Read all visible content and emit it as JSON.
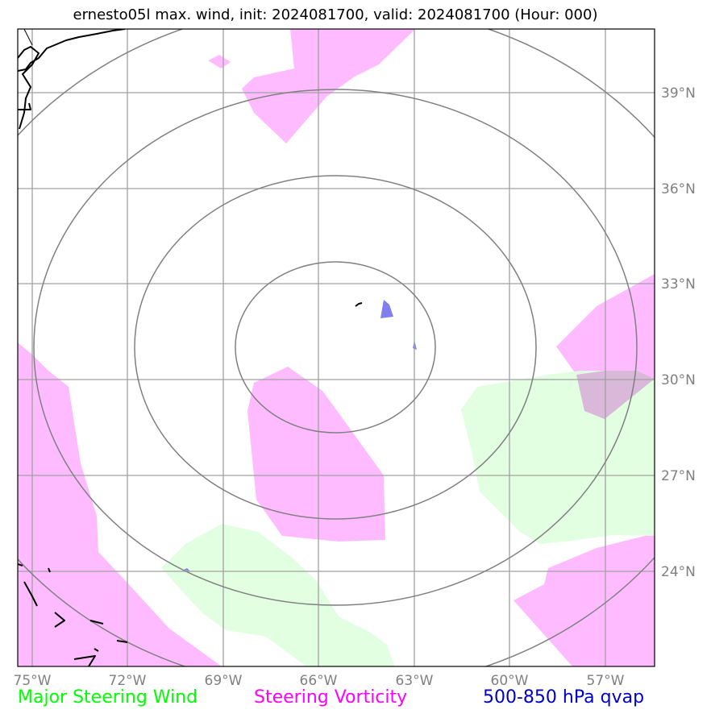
{
  "title": "ernesto05l max. wind, init: 2024081700, valid: 2024081700 (Hour: 000)",
  "map": {
    "lon_labels": [
      "75°W",
      "72°W",
      "69°W",
      "66°W",
      "63°W",
      "60°W",
      "57°W"
    ],
    "lat_labels": [
      "39°N",
      "36°N",
      "33°N",
      "30°N",
      "27°N",
      "24°N"
    ]
  },
  "legend": {
    "wind": "Major Steering Wind",
    "vorticity": "Steering Vorticity",
    "qvap": "500-850 hPa qvap"
  },
  "colors": {
    "wind": "#00ff00",
    "vorticity": "#ff00ff",
    "qvap": "#0000cc",
    "wind_fill": "#dfffdf",
    "vorticity_fill": "#ffbbff",
    "qvap_fill": "#7f7fee",
    "grid": "#a0a0a0",
    "range_rings": "#808080"
  }
}
